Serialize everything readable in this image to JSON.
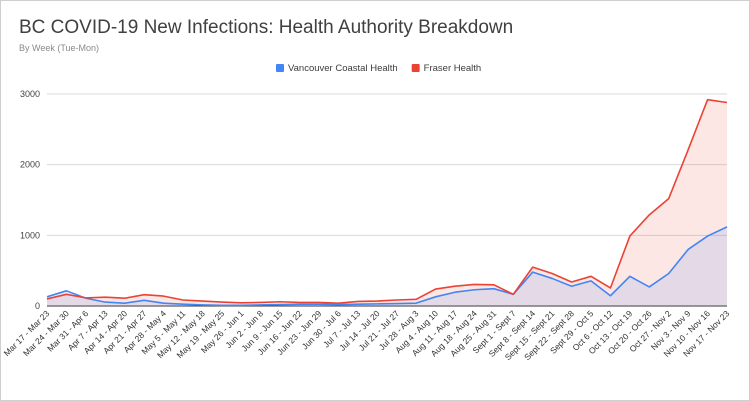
{
  "chart_data": {
    "type": "area",
    "title": "BC COVID-19 New Infections: Health Authority Breakdown",
    "subtitle": "By Week (Tue-Mon)",
    "xlabel": "",
    "ylabel": "",
    "ylim": [
      0,
      3000
    ],
    "yticks": [
      0,
      1000,
      2000,
      3000
    ],
    "grid": true,
    "legend_position": "top-center",
    "categories": [
      "Mar 17 - Mar 23",
      "Mar 24 - Mar 30",
      "Mar 31 - Apr 6",
      "Apr 7 - Apr 13",
      "Apr 14 - Apr 20",
      "Apr 21 - Apr 27",
      "Apr 28 - May 4",
      "May 5 - May 11",
      "May 12 - May 18",
      "May 19 - May 25",
      "May 26 - Jun 1",
      "Jun 2 - Jun 8",
      "Jun 9 - Jun 15",
      "Jun 16 - Jun 22",
      "Jun 23 - Jun 29",
      "Jun 30 - Jul 6",
      "Jul 7 - Jul 13",
      "Jul 14 - Jul 20",
      "Jul 21 - Jul 27",
      "Jul 28 - Aug 3",
      "Aug 4 - Aug 10",
      "Aug 11 - Aug 17",
      "Aug 18 - Aug 24",
      "Aug 25 - Aug 31",
      "Sept 1 - Sept 7",
      "Sept 8 - Sept 14",
      "Sept 15 - Sept 21",
      "Sept 22 - Sept 28",
      "Sept 29 - Oct 5",
      "Oct 6 - Oct 12",
      "Oct 13 - Oct 19",
      "Oct 20 - Oct 26",
      "Oct 27 - Nov 2",
      "Nov 3 - Nov 9",
      "Nov 10 - Nov 16",
      "Nov 17 - Nov 23"
    ],
    "series": [
      {
        "name": "Vancouver Coastal Health",
        "color": "#4285f4",
        "fill": "#dbe6fb",
        "values": [
          130,
          215,
          110,
          55,
          40,
          80,
          40,
          25,
          15,
          10,
          10,
          15,
          20,
          25,
          25,
          20,
          25,
          30,
          35,
          40,
          130,
          195,
          230,
          245,
          165,
          480,
          390,
          280,
          355,
          145,
          420,
          270,
          460,
          800,
          990,
          1120
        ]
      },
      {
        "name": "Fraser Health",
        "color": "#ea4335",
        "fill": "#fce3e0",
        "values": [
          100,
          165,
          115,
          125,
          110,
          160,
          140,
          85,
          70,
          55,
          45,
          50,
          60,
          50,
          50,
          40,
          65,
          70,
          85,
          95,
          240,
          280,
          305,
          300,
          165,
          550,
          460,
          340,
          420,
          255,
          990,
          1290,
          1520,
          2210,
          2920,
          2880
        ]
      }
    ]
  }
}
